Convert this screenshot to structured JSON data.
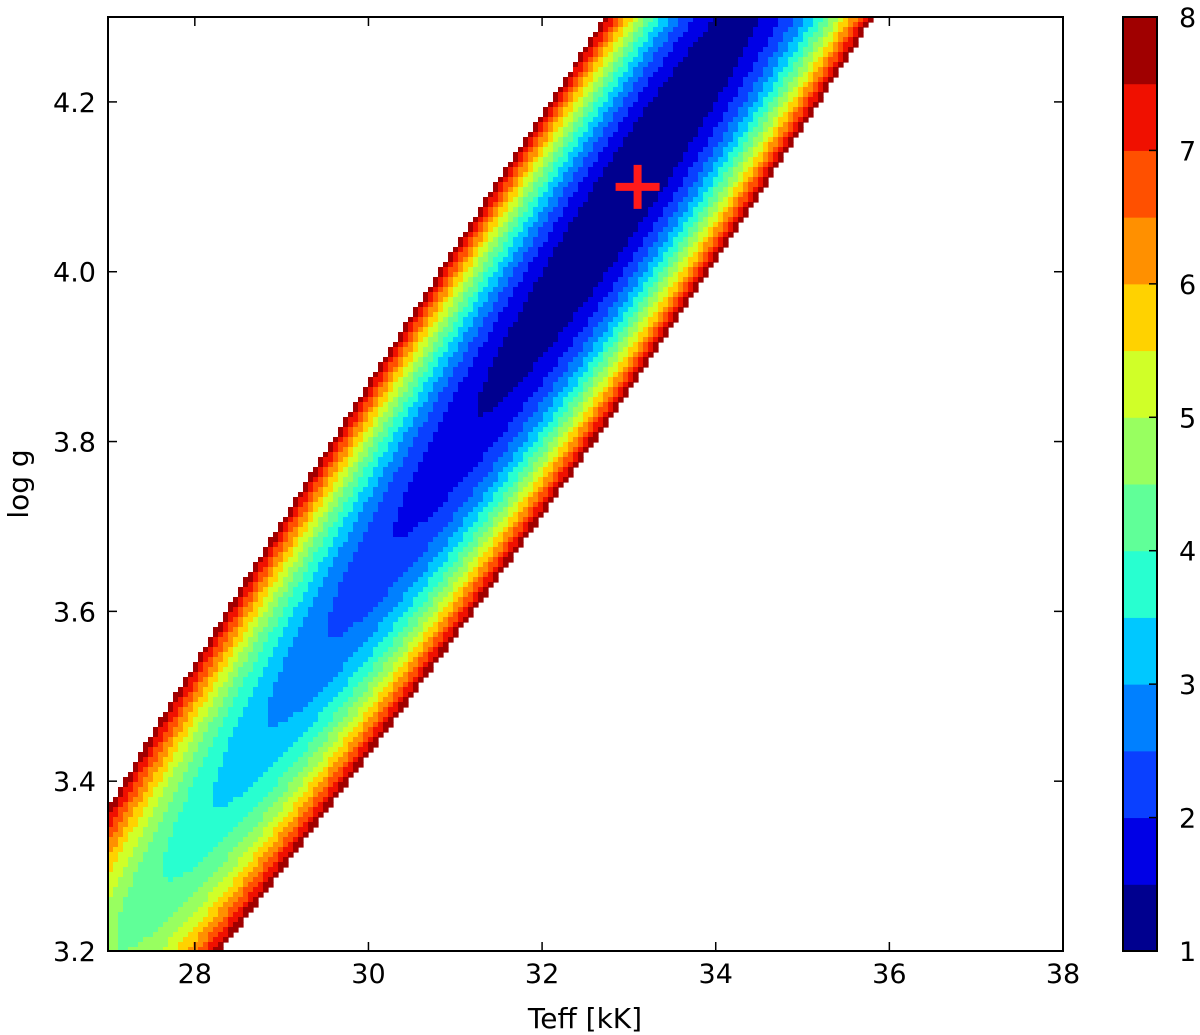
{
  "chart_data": {
    "type": "contour",
    "xlabel": "Teff [kK]",
    "ylabel": "log g",
    "xlim": [
      27,
      38
    ],
    "ylim": [
      3.2,
      4.3
    ],
    "x_ticks": [
      "28",
      "30",
      "32",
      "34",
      "36",
      "38"
    ],
    "y_ticks": [
      "3.2",
      "3.4",
      "3.6",
      "3.8",
      "4.0",
      "4.2"
    ],
    "colorbar": {
      "range": [
        1,
        8
      ],
      "tick_labels": [
        "1",
        "2",
        "3",
        "4",
        "5",
        "6",
        "7",
        "8"
      ],
      "levels": [
        1.0,
        1.5,
        2.0,
        2.5,
        3.0,
        3.5,
        4.0,
        4.5,
        5.0,
        5.5,
        6.0,
        6.5,
        7.0,
        7.5,
        8.0
      ],
      "colors": [
        "#00008f",
        "#0000e6",
        "#0a40ff",
        "#0080ff",
        "#00c8ff",
        "#28ffd0",
        "#60ff98",
        "#98ff60",
        "#d0ff28",
        "#ffd200",
        "#ff9000",
        "#ff5000",
        "#f01000",
        "#a00000"
      ]
    },
    "valley": {
      "center": [
        33.0,
        4.1
      ],
      "direction": [
        0.2,
        0.03
      ],
      "along_scale": 6.5,
      "across_scale": 0.09,
      "along_power": 1.6
    },
    "best_fit_marker": {
      "teff": 33.1,
      "logg": 4.1,
      "color": "#ff1a1a",
      "symbol": "+"
    }
  }
}
